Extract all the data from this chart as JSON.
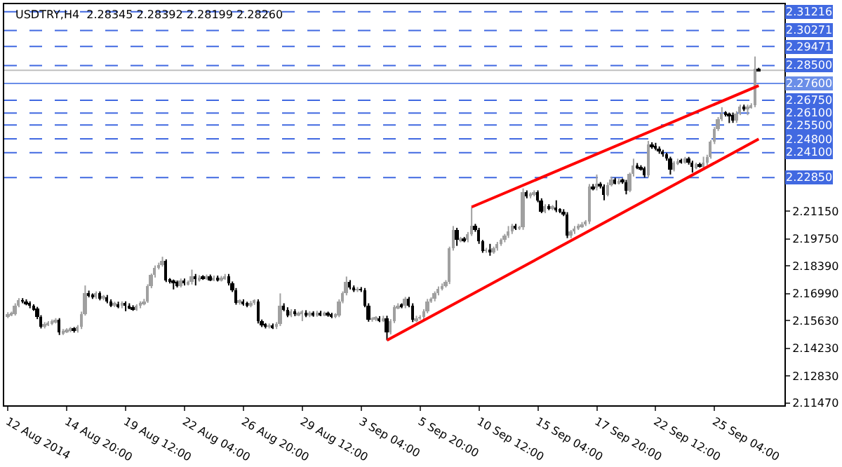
{
  "chart_data": {
    "type": "candlestick",
    "title": "USDTRY,H4  2.28345 2.28392 2.28199 2.28260",
    "categories": [
      "12 Aug 2014",
      null,
      null,
      null,
      null,
      null,
      null,
      null,
      null,
      null,
      null,
      null,
      null,
      null,
      null,
      null,
      "14 Aug 20:00",
      null,
      null,
      null,
      null,
      null,
      null,
      null,
      null,
      null,
      null,
      null,
      null,
      null,
      null,
      null,
      "19 Aug 12:00",
      null,
      null,
      null,
      null,
      null,
      null,
      null,
      null,
      null,
      null,
      null,
      null,
      null,
      null,
      null,
      "22 Aug 04:00",
      null,
      null,
      null,
      null,
      null,
      null,
      null,
      null,
      null,
      null,
      null,
      null,
      null,
      null,
      null,
      "26 Aug 20:00",
      null,
      null,
      null,
      null,
      null,
      null,
      null,
      null,
      null,
      null,
      null,
      null,
      null,
      null,
      null,
      "29 Aug 12:00",
      null,
      null,
      null,
      null,
      null,
      null,
      null,
      null,
      null,
      null,
      null,
      null,
      null,
      null,
      null,
      "3 Sep 04:00",
      null,
      null,
      null,
      null,
      null,
      null,
      null,
      null,
      null,
      null,
      null,
      null,
      null,
      null,
      null,
      "5 Sep 20:00",
      null,
      null,
      null,
      null,
      null,
      null,
      null,
      null,
      null,
      null,
      null,
      null,
      null,
      null,
      null,
      "10 Sep 12:00",
      null,
      null,
      null,
      null,
      null,
      null,
      null,
      null,
      null,
      null,
      null,
      null,
      null,
      null,
      null,
      "15 Sep 04:00",
      null,
      null,
      null,
      null,
      null,
      null,
      null,
      null,
      null,
      null,
      null,
      null,
      null,
      null,
      null,
      "17 Sep 20:00",
      null,
      null,
      null,
      null,
      null,
      null,
      null,
      null,
      null,
      null,
      null,
      null,
      null,
      null,
      null,
      "22 Sep 12:00",
      null,
      null,
      null,
      null,
      null,
      null,
      null,
      null,
      null,
      null,
      null,
      null,
      null,
      null,
      null,
      "25 Sep 04:00",
      null,
      null,
      null,
      null,
      null,
      null,
      null,
      null,
      null,
      null,
      null,
      null
    ],
    "ohlc": [
      [
        2.1585,
        2.1605,
        2.1575,
        2.1595
      ],
      [
        2.1595,
        2.1608,
        2.1585,
        2.1598
      ],
      [
        2.1598,
        2.165,
        2.1588,
        2.164
      ],
      [
        2.164,
        2.1676,
        2.163,
        2.1666
      ],
      [
        2.1666,
        2.1676,
        2.165,
        2.166
      ],
      [
        2.166,
        2.167,
        2.164,
        2.165
      ],
      [
        2.165,
        2.166,
        2.1625,
        2.1635
      ],
      [
        2.1635,
        2.1645,
        2.1612,
        2.1622
      ],
      [
        2.1622,
        2.1632,
        2.157,
        2.158
      ],
      [
        2.158,
        2.159,
        2.1523,
        2.1533
      ],
      [
        2.1533,
        2.1555,
        2.1523,
        2.1545
      ],
      [
        2.1545,
        2.156,
        2.1535,
        2.155
      ],
      [
        2.155,
        2.1568,
        2.154,
        2.1558
      ],
      [
        2.1558,
        2.1575,
        2.1548,
        2.1565
      ],
      [
        2.1565,
        2.1575,
        2.149,
        2.15
      ],
      [
        2.15,
        2.152,
        2.149,
        2.151
      ],
      [
        2.151,
        2.1524,
        2.15,
        2.1514
      ],
      [
        2.1514,
        2.153,
        2.1504,
        2.152
      ],
      [
        2.152,
        2.153,
        2.1502,
        2.1512
      ],
      [
        2.1512,
        2.154,
        2.1502,
        2.153
      ],
      [
        2.153,
        2.1608,
        2.152,
        2.1598
      ],
      [
        2.1598,
        2.174,
        2.1588,
        2.1704
      ],
      [
        2.1704,
        2.1714,
        2.168,
        2.169
      ],
      [
        2.169,
        2.17,
        2.1672,
        2.1682
      ],
      [
        2.1682,
        2.171,
        2.1672,
        2.17
      ],
      [
        2.17,
        2.171,
        2.1665,
        2.1675
      ],
      [
        2.1675,
        2.1692,
        2.1665,
        2.1682
      ],
      [
        2.1682,
        2.1692,
        2.165,
        2.166
      ],
      [
        2.166,
        2.167,
        2.1631,
        2.1641
      ],
      [
        2.1641,
        2.1658,
        2.1631,
        2.1648
      ],
      [
        2.1648,
        2.1658,
        2.1625,
        2.1635
      ],
      [
        2.1635,
        2.166,
        2.1625,
        2.165
      ],
      [
        2.165,
        2.166,
        2.161,
        2.164
      ],
      [
        2.164,
        2.165,
        2.162,
        2.163
      ],
      [
        2.163,
        2.164,
        2.1612,
        2.1622
      ],
      [
        2.1622,
        2.1645,
        2.1612,
        2.1635
      ],
      [
        2.1635,
        2.166,
        2.1625,
        2.165
      ],
      [
        2.165,
        2.1672,
        2.164,
        2.1662
      ],
      [
        2.1662,
        2.1746,
        2.1652,
        2.1736
      ],
      [
        2.1736,
        2.18,
        2.1726,
        2.179
      ],
      [
        2.179,
        2.1841,
        2.178,
        2.1831
      ],
      [
        2.1831,
        2.1855,
        2.1821,
        2.1845
      ],
      [
        2.1845,
        2.1885,
        2.1835,
        2.1862
      ],
      [
        2.1862,
        2.1872,
        2.1757,
        2.1767
      ],
      [
        2.1767,
        2.1777,
        2.175,
        2.176
      ],
      [
        2.176,
        2.177,
        2.172,
        2.1755
      ],
      [
        2.1755,
        2.1765,
        2.173,
        2.174
      ],
      [
        2.174,
        2.1775,
        2.173,
        2.1765
      ],
      [
        2.1765,
        2.1775,
        2.174,
        2.175
      ],
      [
        2.175,
        2.1765,
        2.174,
        2.1755
      ],
      [
        2.1755,
        2.182,
        2.1745,
        2.1788
      ],
      [
        2.1788,
        2.1798,
        2.174,
        2.177
      ],
      [
        2.177,
        2.1792,
        2.176,
        2.1782
      ],
      [
        2.1782,
        2.1792,
        2.1768,
        2.1778
      ],
      [
        2.1778,
        2.1795,
        2.1768,
        2.1785
      ],
      [
        2.1785,
        2.1795,
        2.1762,
        2.1772
      ],
      [
        2.1772,
        2.179,
        2.1762,
        2.178
      ],
      [
        2.178,
        2.179,
        2.176,
        2.177
      ],
      [
        2.177,
        2.1788,
        2.176,
        2.1778
      ],
      [
        2.1778,
        2.1798,
        2.1768,
        2.1788
      ],
      [
        2.1788,
        2.1798,
        2.174,
        2.175
      ],
      [
        2.175,
        2.176,
        2.1707,
        2.1717
      ],
      [
        2.1717,
        2.1727,
        2.1643,
        2.1653
      ],
      [
        2.1653,
        2.167,
        2.1643,
        2.166
      ],
      [
        2.166,
        2.167,
        2.1638,
        2.1648
      ],
      [
        2.1648,
        2.1658,
        2.163,
        2.164
      ],
      [
        2.164,
        2.1662,
        2.163,
        2.1652
      ],
      [
        2.1652,
        2.167,
        2.1642,
        2.166
      ],
      [
        2.166,
        2.167,
        2.1548,
        2.1558
      ],
      [
        2.1558,
        2.1568,
        2.153,
        2.154
      ],
      [
        2.154,
        2.155,
        2.1523,
        2.1533
      ],
      [
        2.1533,
        2.1548,
        2.1523,
        2.1538
      ],
      [
        2.1538,
        2.1548,
        2.152,
        2.153
      ],
      [
        2.153,
        2.1555,
        2.152,
        2.1545
      ],
      [
        2.1545,
        2.17,
        2.1535,
        2.164
      ],
      [
        2.164,
        2.165,
        2.161,
        2.162
      ],
      [
        2.162,
        2.163,
        2.158,
        2.159
      ],
      [
        2.159,
        2.162,
        2.158,
        2.161
      ],
      [
        2.161,
        2.162,
        2.1585,
        2.1595
      ],
      [
        2.1595,
        2.1608,
        2.1585,
        2.1598
      ],
      [
        2.1598,
        2.1615,
        2.156,
        2.1605
      ],
      [
        2.1605,
        2.1615,
        2.158,
        2.159
      ],
      [
        2.159,
        2.161,
        2.158,
        2.16
      ],
      [
        2.16,
        2.161,
        2.1582,
        2.1592
      ],
      [
        2.1592,
        2.1612,
        2.1582,
        2.1602
      ],
      [
        2.1602,
        2.1612,
        2.1585,
        2.1595
      ],
      [
        2.1595,
        2.1608,
        2.1585,
        2.1598
      ],
      [
        2.1598,
        2.1608,
        2.1582,
        2.1592
      ],
      [
        2.1592,
        2.1602,
        2.1575,
        2.1585
      ],
      [
        2.1585,
        2.16,
        2.1575,
        2.159
      ],
      [
        2.159,
        2.167,
        2.158,
        2.166
      ],
      [
        2.166,
        2.171,
        2.165,
        2.17
      ],
      [
        2.17,
        2.1785,
        2.169,
        2.1757
      ],
      [
        2.1757,
        2.1767,
        2.172,
        2.173
      ],
      [
        2.173,
        2.174,
        2.1707,
        2.1717
      ],
      [
        2.1717,
        2.1732,
        2.1707,
        2.1722
      ],
      [
        2.1722,
        2.1732,
        2.1707,
        2.1717
      ],
      [
        2.1717,
        2.1727,
        2.163,
        2.164
      ],
      [
        2.164,
        2.165,
        2.1557,
        2.1567
      ],
      [
        2.1567,
        2.158,
        2.1557,
        2.157
      ],
      [
        2.157,
        2.1585,
        2.156,
        2.1575
      ],
      [
        2.1575,
        2.1585,
        2.1555,
        2.1565
      ],
      [
        2.1565,
        2.1587,
        2.1555,
        2.1577
      ],
      [
        2.1577,
        2.1587,
        2.1463,
        2.1503
      ],
      [
        2.1503,
        2.157,
        2.1493,
        2.156
      ],
      [
        2.156,
        2.164,
        2.155,
        2.163
      ],
      [
        2.163,
        2.165,
        2.162,
        2.164
      ],
      [
        2.164,
        2.165,
        2.1625,
        2.1635
      ],
      [
        2.1635,
        2.1682,
        2.1625,
        2.1672
      ],
      [
        2.1672,
        2.1682,
        2.163,
        2.164
      ],
      [
        2.164,
        2.165,
        2.1555,
        2.1565
      ],
      [
        2.1565,
        2.1587,
        2.1555,
        2.1577
      ],
      [
        2.1577,
        2.159,
        2.1567,
        2.158
      ],
      [
        2.158,
        2.162,
        2.157,
        2.161
      ],
      [
        2.161,
        2.1672,
        2.16,
        2.1662
      ],
      [
        2.1662,
        2.168,
        2.1652,
        2.167
      ],
      [
        2.167,
        2.171,
        2.166,
        2.17
      ],
      [
        2.17,
        2.1735,
        2.169,
        2.1725
      ],
      [
        2.1725,
        2.175,
        2.1715,
        2.174
      ],
      [
        2.174,
        2.1767,
        2.173,
        2.1757
      ],
      [
        2.1757,
        2.1936,
        2.1747,
        2.1926
      ],
      [
        2.1926,
        2.204,
        2.1916,
        2.2021
      ],
      [
        2.2021,
        2.2031,
        2.194,
        2.1968
      ],
      [
        2.1968,
        2.1985,
        2.1958,
        2.1975
      ],
      [
        2.1975,
        2.1985,
        2.1958,
        2.1968
      ],
      [
        2.1968,
        2.201,
        2.1958,
        2.2
      ],
      [
        2.2,
        2.2136,
        2.199,
        2.2041
      ],
      [
        2.2041,
        2.2051,
        2.2011,
        2.2021
      ],
      [
        2.2021,
        2.2031,
        2.195,
        2.196
      ],
      [
        2.196,
        2.197,
        2.1905,
        2.1915
      ],
      [
        2.1915,
        2.193,
        2.1905,
        2.192
      ],
      [
        2.192,
        2.195,
        2.189,
        2.191
      ],
      [
        2.191,
        2.1936,
        2.19,
        2.1926
      ],
      [
        2.1926,
        2.196,
        2.1916,
        2.195
      ],
      [
        2.195,
        2.1978,
        2.194,
        2.1968
      ],
      [
        2.1968,
        2.2,
        2.1958,
        2.199
      ],
      [
        2.199,
        2.204,
        2.198,
        2.201
      ],
      [
        2.201,
        2.2051,
        2.2,
        2.2041
      ],
      [
        2.2041,
        2.2051,
        2.202,
        2.203
      ],
      [
        2.203,
        2.2041,
        2.202,
        2.2031
      ],
      [
        2.2031,
        2.223,
        2.2021,
        2.221
      ],
      [
        2.221,
        2.222,
        2.218,
        2.219
      ],
      [
        2.219,
        2.221,
        2.218,
        2.22
      ],
      [
        2.22,
        2.222,
        2.219,
        2.221
      ],
      [
        2.221,
        2.222,
        2.216,
        2.217
      ],
      [
        2.217,
        2.218,
        2.2105,
        2.2115
      ],
      [
        2.2115,
        2.215,
        2.2105,
        2.214
      ],
      [
        2.214,
        2.215,
        2.212,
        2.213
      ],
      [
        2.213,
        2.2146,
        2.212,
        2.2136
      ],
      [
        2.2136,
        2.217,
        2.211,
        2.212
      ],
      [
        2.212,
        2.213,
        2.2105,
        2.2115
      ],
      [
        2.2115,
        2.2125,
        2.209,
        2.21
      ],
      [
        2.21,
        2.211,
        2.1979,
        2.1989
      ],
      [
        2.1989,
        2.202,
        2.1979,
        2.201
      ],
      [
        2.201,
        2.204,
        2.2,
        2.203
      ],
      [
        2.203,
        2.2051,
        2.202,
        2.2041
      ],
      [
        2.2041,
        2.206,
        2.2031,
        2.205
      ],
      [
        2.205,
        2.207,
        2.204,
        2.206
      ],
      [
        2.206,
        2.2252,
        2.205,
        2.2242
      ],
      [
        2.2242,
        2.2252,
        2.222,
        2.223
      ],
      [
        2.223,
        2.23,
        2.222,
        2.2252
      ],
      [
        2.2252,
        2.2262,
        2.223,
        2.224
      ],
      [
        2.224,
        2.225,
        2.217,
        2.22
      ],
      [
        2.22,
        2.226,
        2.219,
        2.225
      ],
      [
        2.225,
        2.229,
        2.224,
        2.2274
      ],
      [
        2.2274,
        2.2284,
        2.225,
        2.226
      ],
      [
        2.226,
        2.228,
        2.225,
        2.227
      ],
      [
        2.227,
        2.228,
        2.2253,
        2.2263
      ],
      [
        2.2263,
        2.2273,
        2.22,
        2.2221
      ],
      [
        2.2221,
        2.231,
        2.2211,
        2.23
      ],
      [
        2.23,
        2.238,
        2.229,
        2.2348
      ],
      [
        2.2348,
        2.2358,
        2.2327,
        2.2337
      ],
      [
        2.2337,
        2.2347,
        2.232,
        2.233
      ],
      [
        2.233,
        2.234,
        2.2285,
        2.2295
      ],
      [
        2.2295,
        2.247,
        2.2285,
        2.2453
      ],
      [
        2.2453,
        2.2463,
        2.243,
        2.244
      ],
      [
        2.244,
        2.246,
        2.2422,
        2.2432
      ],
      [
        2.2432,
        2.2442,
        2.2405,
        2.2415
      ],
      [
        2.2415,
        2.2425,
        2.239,
        2.24
      ],
      [
        2.24,
        2.241,
        2.237,
        2.238
      ],
      [
        2.238,
        2.239,
        2.23,
        2.2326
      ],
      [
        2.2326,
        2.2368,
        2.2316,
        2.2358
      ],
      [
        2.2358,
        2.238,
        2.2348,
        2.237
      ],
      [
        2.237,
        2.238,
        2.2355,
        2.2365
      ],
      [
        2.2365,
        2.2389,
        2.2355,
        2.2379
      ],
      [
        2.2379,
        2.2389,
        2.235,
        2.236
      ],
      [
        2.236,
        2.237,
        2.231,
        2.2337
      ],
      [
        2.2337,
        2.236,
        2.2327,
        2.235
      ],
      [
        2.235,
        2.236,
        2.2335,
        2.2345
      ],
      [
        2.2345,
        2.239,
        2.2335,
        2.2358
      ],
      [
        2.2358,
        2.24,
        2.2348,
        2.239
      ],
      [
        2.239,
        2.2474,
        2.238,
        2.2464
      ],
      [
        2.2464,
        2.254,
        2.2454,
        2.253
      ],
      [
        2.253,
        2.259,
        2.252,
        2.258
      ],
      [
        2.258,
        2.264,
        2.257,
        2.261
      ],
      [
        2.261,
        2.262,
        2.2593,
        2.2603
      ],
      [
        2.2603,
        2.2613,
        2.256,
        2.2598
      ],
      [
        2.2598,
        2.2613,
        2.2561,
        2.2571
      ],
      [
        2.2571,
        2.262,
        2.2561,
        2.261
      ],
      [
        2.261,
        2.2653,
        2.26,
        2.2643
      ],
      [
        2.2643,
        2.2653,
        2.262,
        2.263
      ],
      [
        2.263,
        2.2653,
        2.26,
        2.2643
      ],
      [
        2.2643,
        2.266,
        2.2633,
        2.265
      ],
      [
        2.265,
        2.2896,
        2.264,
        2.2835
      ],
      [
        2.2835,
        2.2839,
        2.282,
        2.2826
      ]
    ],
    "series": [
      {
        "type": "line",
        "color": "#ff0000",
        "values": [
          null,
          null,
          null,
          null,
          null,
          null,
          null,
          null,
          null,
          null,
          null,
          null,
          null,
          null,
          null,
          null,
          null,
          null,
          null,
          null,
          null,
          null,
          null,
          null,
          null,
          null,
          null,
          null,
          null,
          null,
          null,
          null,
          null,
          null,
          null,
          null,
          null,
          null,
          null,
          null,
          null,
          null,
          null,
          null,
          null,
          null,
          null,
          null,
          null,
          null,
          null,
          null,
          null,
          null,
          null,
          null,
          null,
          null,
          null,
          null,
          null,
          null,
          null,
          null,
          null,
          null,
          null,
          null,
          null,
          null,
          null,
          null,
          null,
          null,
          null,
          null,
          null,
          null,
          null,
          null,
          null,
          null,
          null,
          null,
          null,
          null,
          null,
          null,
          null,
          null,
          null,
          null,
          null,
          null,
          null,
          null,
          null,
          null,
          null,
          null,
          null,
          null,
          null,
          2.1463,
          null,
          null,
          null,
          null,
          null,
          null,
          null,
          null,
          null,
          null,
          null,
          null,
          null,
          null,
          null,
          null,
          null,
          null,
          null,
          null,
          null,
          null,
          null,
          null,
          null,
          null,
          null,
          null,
          null,
          null,
          null,
          null,
          null,
          null,
          null,
          null,
          null,
          null,
          null,
          null,
          null,
          null,
          null,
          null,
          null,
          null,
          null,
          null,
          null,
          null,
          null,
          null,
          null,
          null,
          null,
          null,
          null,
          null,
          null,
          null,
          null,
          null,
          null,
          null,
          null,
          null,
          null,
          null,
          null,
          null,
          null,
          null,
          null,
          null,
          null,
          null,
          null,
          null,
          null,
          null,
          null,
          null,
          null,
          null,
          null,
          null,
          null,
          null,
          null,
          null,
          null,
          null,
          null,
          null,
          null,
          null,
          null,
          null,
          null,
          null,
          2.2479
        ]
      },
      {
        "type": "line",
        "color": "#ff0000",
        "values": [
          null,
          null,
          null,
          null,
          null,
          null,
          null,
          null,
          null,
          null,
          null,
          null,
          null,
          null,
          null,
          null,
          null,
          null,
          null,
          null,
          null,
          null,
          null,
          null,
          null,
          null,
          null,
          null,
          null,
          null,
          null,
          null,
          null,
          null,
          null,
          null,
          null,
          null,
          null,
          null,
          null,
          null,
          null,
          null,
          null,
          null,
          null,
          null,
          null,
          null,
          null,
          null,
          null,
          null,
          null,
          null,
          null,
          null,
          null,
          null,
          null,
          null,
          null,
          null,
          null,
          null,
          null,
          null,
          null,
          null,
          null,
          null,
          null,
          null,
          null,
          null,
          null,
          null,
          null,
          null,
          null,
          null,
          null,
          null,
          null,
          null,
          null,
          null,
          null,
          null,
          null,
          null,
          null,
          null,
          null,
          null,
          null,
          null,
          null,
          null,
          null,
          null,
          null,
          null,
          null,
          null,
          null,
          null,
          null,
          null,
          null,
          null,
          null,
          null,
          null,
          null,
          null,
          null,
          null,
          null,
          null,
          null,
          null,
          null,
          null,
          null,
          2.2136,
          null,
          null,
          null,
          null,
          null,
          null,
          null,
          null,
          null,
          null,
          null,
          null,
          null,
          null,
          null,
          null,
          null,
          null,
          null,
          null,
          null,
          null,
          null,
          null,
          null,
          null,
          null,
          null,
          null,
          null,
          null,
          null,
          null,
          null,
          null,
          null,
          null,
          null,
          null,
          null,
          null,
          null,
          null,
          null,
          null,
          null,
          null,
          null,
          null,
          null,
          null,
          null,
          null,
          null,
          null,
          null,
          null,
          null,
          null,
          null,
          null,
          null,
          null,
          null,
          null,
          null,
          null,
          null,
          null,
          null,
          null,
          null,
          null,
          null,
          null,
          null,
          null,
          2.2749
        ]
      }
    ],
    "ylim": [
      2.1135,
      2.316
    ],
    "yticks": [
      {
        "value": 2.1147,
        "label": "2.11470"
      },
      {
        "value": 2.1283,
        "label": "2.12830"
      },
      {
        "value": 2.1423,
        "label": "2.14230"
      },
      {
        "value": 2.1563,
        "label": "2.15630"
      },
      {
        "value": 2.1699,
        "label": "2.16990"
      },
      {
        "value": 2.1839,
        "label": "2.18390"
      },
      {
        "value": 2.1975,
        "label": "2.19750"
      },
      {
        "value": 2.2115,
        "label": "2.21150"
      }
    ],
    "ref_lines": [
      {
        "axis": "y",
        "value": 2.31216,
        "label": "2.31216",
        "color": "#4169e1",
        "line_style": "dashed"
      },
      {
        "axis": "y",
        "value": 2.30271,
        "label": "2.30271",
        "color": "#4169e1",
        "line_style": "dashed"
      },
      {
        "axis": "y",
        "value": 2.29471,
        "label": "2.29471",
        "color": "#4169e1",
        "line_style": "dashed"
      },
      {
        "axis": "y",
        "value": 2.285,
        "label": "2.28500",
        "color": "#4169e1",
        "line_style": "dashed"
      },
      {
        "axis": "y",
        "value": 2.2826,
        "label": null,
        "color": "#c0c0c0",
        "line_style": "solid"
      },
      {
        "axis": "y",
        "value": 2.276,
        "label": "2.27600",
        "color": "#6a8ee8",
        "line_style": "solid"
      },
      {
        "axis": "y",
        "value": 2.2675,
        "label": "2.26750",
        "color": "#4169e1",
        "line_style": "dashed"
      },
      {
        "axis": "y",
        "value": 2.261,
        "label": "2.26100",
        "color": "#4169e1",
        "line_style": "dashed"
      },
      {
        "axis": "y",
        "value": 2.255,
        "label": "2.25500",
        "color": "#4169e1",
        "line_style": "dashed"
      },
      {
        "axis": "y",
        "value": 2.248,
        "label": "2.24800",
        "color": "#4169e1",
        "line_style": "dashed"
      },
      {
        "axis": "y",
        "value": 2.241,
        "label": "2.24100",
        "color": "#4169e1",
        "line_style": "dashed"
      },
      {
        "axis": "y",
        "value": 2.2285,
        "label": "2.22850",
        "color": "#4169e1",
        "line_style": "dashed"
      }
    ],
    "grid": false
  }
}
